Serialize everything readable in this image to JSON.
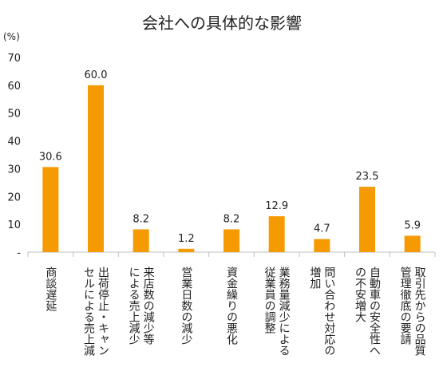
{
  "chart_data": {
    "type": "bar",
    "title": "会社への具体的な影響",
    "unit_label": "(%)",
    "ylim": [
      0,
      70
    ],
    "yticks": [
      "-",
      "10",
      "20",
      "30",
      "40",
      "50",
      "60",
      "70"
    ],
    "grid": false,
    "categories": [
      "商談遅延",
      "出荷停止・キャンセルによる売上減",
      "来店数の減少等による売上減少",
      "営業日数の減少",
      "資金繰りの悪化",
      "業務量減少による従業員の調整",
      "問い合わせ対応の増加",
      "自動車の安全性への不安増大",
      "取引先からの品質管理徹底の要請"
    ],
    "category_lines": [
      [
        "商談遅延"
      ],
      [
        "出荷停止・キャン",
        "セルによる売上減"
      ],
      [
        "来店数の減少等",
        "による売上減少"
      ],
      [
        "営業日数の減少"
      ],
      [
        "資金繰りの悪化"
      ],
      [
        "業務量減少による",
        "従業員の調整"
      ],
      [
        "問い合わせ対応の",
        "増加"
      ],
      [
        "自動車の安全性へ",
        "の不安増大"
      ],
      [
        "取引先からの品質",
        "管理徹底の要請"
      ]
    ],
    "values": [
      30.6,
      60.0,
      8.2,
      1.2,
      8.2,
      12.9,
      4.7,
      23.5,
      5.9
    ],
    "value_labels": [
      "30.6",
      "60.0",
      "8.2",
      "1.2",
      "8.2",
      "12.9",
      "4.7",
      "23.5",
      "5.9"
    ],
    "colors": {
      "bar": "#F59A00",
      "axis": "#BFBFBF",
      "text": "#222222"
    }
  }
}
